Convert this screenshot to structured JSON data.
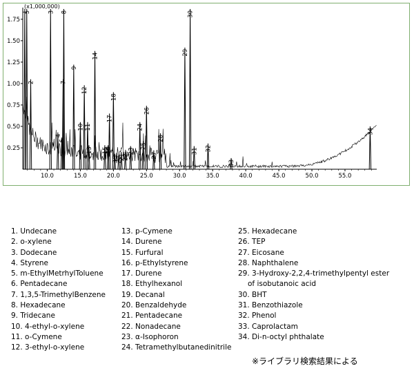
{
  "chart_data": {
    "type": "line",
    "scale_label": "(x1,000,000)",
    "x_ticks": [
      "10.0",
      "15.0",
      "20.0",
      "25.0",
      "30.0",
      "35.0",
      "40.0",
      "45.0",
      "50.0",
      "55.0"
    ],
    "x_tick_values": [
      10,
      15,
      20,
      25,
      30,
      35,
      40,
      45,
      50,
      55
    ],
    "y_ticks": [
      "0.25",
      "0.50",
      "0.75",
      "1.00",
      "1.25",
      "1.50",
      "1.75"
    ],
    "y_tick_values": [
      0.25,
      0.5,
      0.75,
      1.0,
      1.25,
      1.5,
      1.75
    ],
    "xlim": [
      6.3,
      59.8
    ],
    "ylim": [
      0,
      1.87
    ],
    "line_color": "#000000",
    "peaks": [
      {
        "label": "1",
        "x": 6.6,
        "y": 1.87
      },
      {
        "label": "2",
        "x": 7.5,
        "y": 1.05
      },
      {
        "label": "3",
        "x": 10.5,
        "y": 1.87
      },
      {
        "label": "4",
        "x": 11.6,
        "y": 0.43
      },
      {
        "label": "5",
        "x": 6.9,
        "y": 1.87
      },
      {
        "label": "6",
        "x": 12.2,
        "y": 0.37
      },
      {
        "label": "7",
        "x": 12.4,
        "y": 1.05
      },
      {
        "label": "8",
        "x": 12.5,
        "y": 1.87
      },
      {
        "label": "9",
        "x": 14.0,
        "y": 1.22
      },
      {
        "label": "10",
        "x": 15.0,
        "y": 0.55
      },
      {
        "label": "11",
        "x": 16.1,
        "y": 0.55
      },
      {
        "label": "12",
        "x": 15.6,
        "y": 0.98
      },
      {
        "label": "13",
        "x": 16.3,
        "y": 0.28
      },
      {
        "label": "14",
        "x": 17.2,
        "y": 1.38
      },
      {
        "label": "15",
        "x": 18.7,
        "y": 0.28
      },
      {
        "label": "16",
        "x": 19.2,
        "y": 0.28
      },
      {
        "label": "17",
        "x": 19.4,
        "y": 0.65
      },
      {
        "label": "18",
        "x": 20.0,
        "y": 0.9
      },
      {
        "label": "19",
        "x": 20.2,
        "y": 0.18
      },
      {
        "label": "20",
        "x": 20.8,
        "y": 0.17
      },
      {
        "label": "21",
        "x": 21.2,
        "y": 0.2
      },
      {
        "label": "22",
        "x": 21.8,
        "y": 0.2
      },
      {
        "label": "23",
        "x": 22.6,
        "y": 0.27
      },
      {
        "label": "24",
        "x": 24.0,
        "y": 0.55
      },
      {
        "label": "25",
        "x": 24.5,
        "y": 0.33
      },
      {
        "label": "26",
        "x": 25.0,
        "y": 0.74
      },
      {
        "label": "27",
        "x": 26.1,
        "y": 0.22
      },
      {
        "label": "28",
        "x": 27.1,
        "y": 0.42
      },
      {
        "label": "29",
        "x": 30.8,
        "y": 1.42
      },
      {
        "label": "30",
        "x": 31.6,
        "y": 1.87
      },
      {
        "label": "31",
        "x": 32.2,
        "y": 0.27
      },
      {
        "label": "32",
        "x": 34.3,
        "y": 0.3
      },
      {
        "label": "33",
        "x": 37.8,
        "y": 0.13
      },
      {
        "label": "34",
        "x": 58.8,
        "y": 0.5
      }
    ]
  },
  "legend": {
    "col1": [
      "1. Undecane",
      "2. o-xylene",
      "3. Dodecane",
      "4. Styrene",
      "5. m-EthylMetrhylToluene",
      "6. Pentadecane",
      "7. 1,3,5-TrimethylBenzene",
      "8. Hexadecane",
      "9. Tridecane",
      "10. 4-ethyl-o-xylene",
      "11. o-Cymene",
      "12. 3-ethyl-o-xylene"
    ],
    "col2": [
      "13. p-Cymene",
      "14. Durene",
      "15. Furfural",
      "16. p-Ethylstyrene",
      "17. Durene",
      "18. Ethylhexanol",
      "19. Decanal",
      "20. Benzaldehyde",
      "21. Pentadecane",
      "22. Nonadecane",
      "23. α-Isophoron",
      "24. Tetramethylbutanedinitrile"
    ],
    "col3": [
      "25. Hexadecane",
      "26. TEP",
      "27. Eicosane",
      "28. Naphthalene",
      "29. 3-Hydroxy-2,2,4-trimethylpentyl ester",
      "of isobutanoic acid",
      "30. BHT",
      "31. Benzothiazole",
      "32. Phenol",
      "33. Caprolactam",
      "34. Di-n-octyl phthalate"
    ]
  },
  "note": "※ライブラリ検索結果による"
}
